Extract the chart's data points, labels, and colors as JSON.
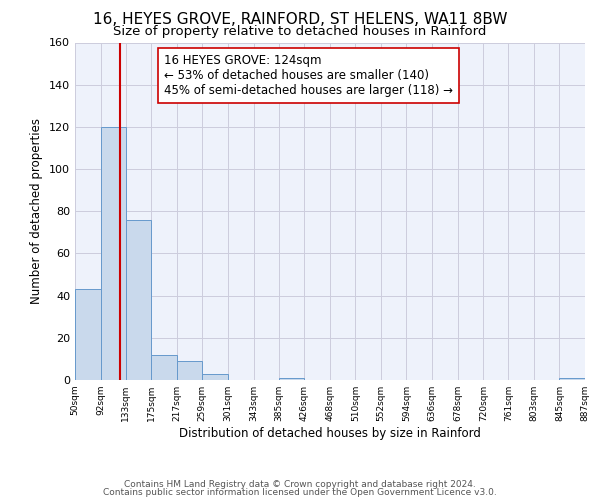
{
  "title": "16, HEYES GROVE, RAINFORD, ST HELENS, WA11 8BW",
  "subtitle": "Size of property relative to detached houses in Rainford",
  "xlabel": "Distribution of detached houses by size in Rainford",
  "ylabel": "Number of detached properties",
  "bar_edges": [
    50,
    92,
    133,
    175,
    217,
    259,
    301,
    343,
    385,
    426,
    468,
    510,
    552,
    594,
    636,
    678,
    720,
    761,
    803,
    845,
    887
  ],
  "bar_heights": [
    43,
    120,
    76,
    12,
    9,
    3,
    0,
    0,
    1,
    0,
    0,
    0,
    0,
    0,
    0,
    0,
    0,
    0,
    0,
    1
  ],
  "bar_color": "#c9d9ec",
  "bar_edge_color": "#6699cc",
  "grid_color": "#ccccdd",
  "background_color": "#eef2fb",
  "vline_x": 124,
  "vline_color": "#cc0000",
  "annotation_text_line1": "16 HEYES GROVE: 124sqm",
  "annotation_text_line2": "← 53% of detached houses are smaller (140)",
  "annotation_text_line3": "45% of semi-detached houses are larger (118) →",
  "ylim": [
    0,
    160
  ],
  "tick_labels": [
    "50sqm",
    "92sqm",
    "133sqm",
    "175sqm",
    "217sqm",
    "259sqm",
    "301sqm",
    "343sqm",
    "385sqm",
    "426sqm",
    "468sqm",
    "510sqm",
    "552sqm",
    "594sqm",
    "636sqm",
    "678sqm",
    "720sqm",
    "761sqm",
    "803sqm",
    "845sqm",
    "887sqm"
  ],
  "footer_line1": "Contains HM Land Registry data © Crown copyright and database right 2024.",
  "footer_line2": "Contains public sector information licensed under the Open Government Licence v3.0.",
  "title_fontsize": 11,
  "subtitle_fontsize": 9.5,
  "annot_fontsize": 8.5,
  "footer_fontsize": 6.5
}
